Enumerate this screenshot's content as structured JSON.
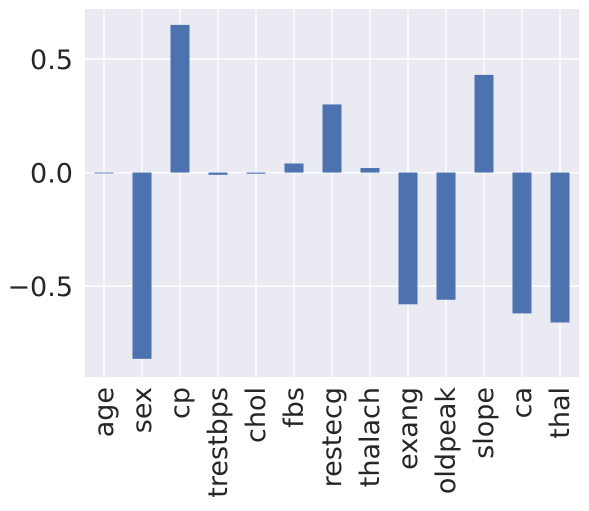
{
  "chart_data": {
    "type": "bar",
    "title": "",
    "xlabel": "",
    "ylabel": "",
    "categories": [
      "age",
      "sex",
      "cp",
      "trestbps",
      "chol",
      "fbs",
      "restecg",
      "thalach",
      "exang",
      "oldpeak",
      "slope",
      "ca",
      "thal"
    ],
    "values": [
      0.0,
      -0.82,
      0.65,
      -0.01,
      -0.005,
      0.04,
      0.3,
      0.02,
      -0.58,
      -0.56,
      0.43,
      -0.62,
      -0.66
    ],
    "ylim": [
      -0.9,
      0.72
    ],
    "yticks": [
      0.5,
      0.0,
      -0.5
    ],
    "ytick_labels": [
      "0.5",
      "0.0",
      "−0.5"
    ],
    "grid": true,
    "style": "seaborn-darkgrid",
    "bar_color": "#4c72b0",
    "background_color": "#eaeaf2"
  }
}
